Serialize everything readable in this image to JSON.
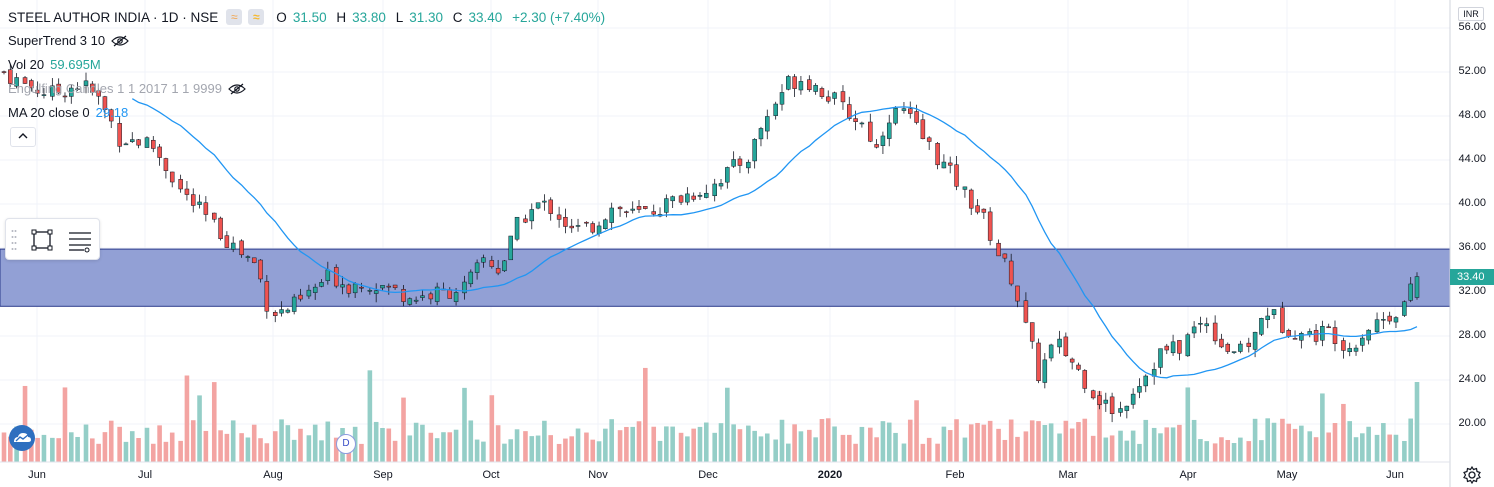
{
  "header": {
    "symbol_title": "STEEL AUTHOR INDIA · 1D · NSE",
    "chip_compare": "≈",
    "open_label": "O",
    "open": "31.50",
    "high_label": "H",
    "high": "33.80",
    "low_label": "L",
    "low": "31.30",
    "close_label": "C",
    "close": "33.40",
    "change": "+2.30 (+7.40%)"
  },
  "indicators": [
    {
      "name": "SuperTrend 3 10",
      "value": "",
      "hidden": true
    },
    {
      "name": "Vol 20",
      "value": "59.695M",
      "hidden": false
    },
    {
      "name": "Engulfing Candles 1 1 2017 1 1 9999",
      "value": "",
      "hidden": true
    },
    {
      "name": "MA 20 close 0",
      "value": "29.18",
      "hidden": false
    }
  ],
  "collapse_glyph": "^",
  "toolbar": {
    "rect_tool": "rectangle-icon",
    "lines_tool": "lines-icon"
  },
  "currency": "INR",
  "last_price": "33.40",
  "dividend_marker": "D",
  "colors": {
    "up": "#26a69a",
    "down": "#ef5350",
    "vol_up": "#94cec7",
    "vol_down": "#f3a4a2",
    "ma": "#2196f3",
    "zone": "#8c9bd3",
    "zone_border": "#2b3a8a"
  },
  "chart_data": {
    "type": "candlestick",
    "y_axis": {
      "ticks": [
        "56.00",
        "52.00",
        "48.00",
        "44.00",
        "40.00",
        "36.00",
        "32.00",
        "28.00",
        "24.00",
        "20.00"
      ],
      "ylim": [
        17.5,
        57.5
      ],
      "scale": "linear",
      "position": "right"
    },
    "x_axis": {
      "ticks": [
        "Jun",
        "Jul",
        "Aug",
        "Sep",
        "Oct",
        "Nov",
        "Dec",
        "2020",
        "Feb",
        "Mar",
        "Apr",
        "May",
        "Jun"
      ],
      "bold_ticks": [
        "2020"
      ]
    },
    "grid": true,
    "zone": {
      "from": 30.7,
      "to": 35.9
    },
    "anchors": [
      [
        0,
        52
      ],
      [
        8,
        51
      ],
      [
        15,
        50.5
      ],
      [
        22,
        50
      ],
      [
        30,
        50.5
      ],
      [
        37,
        51
      ],
      [
        45,
        49.5
      ],
      [
        55,
        46
      ],
      [
        70,
        45.5
      ],
      [
        85,
        41
      ],
      [
        100,
        38
      ],
      [
        110,
        36
      ],
      [
        120,
        34.5
      ],
      [
        125,
        31
      ],
      [
        130,
        30
      ],
      [
        140,
        31
      ],
      [
        155,
        33.5
      ],
      [
        165,
        32.5
      ],
      [
        170,
        33
      ],
      [
        180,
        32.5
      ],
      [
        195,
        31.5
      ],
      [
        210,
        32
      ],
      [
        220,
        32.5
      ],
      [
        228,
        35
      ],
      [
        236,
        34
      ],
      [
        245,
        38.5
      ],
      [
        255,
        40
      ],
      [
        262,
        39.5
      ],
      [
        270,
        37.5
      ],
      [
        280,
        38
      ],
      [
        290,
        39.8
      ],
      [
        300,
        39
      ],
      [
        310,
        39.5
      ],
      [
        320,
        40.5
      ],
      [
        335,
        41.5
      ],
      [
        345,
        43
      ],
      [
        355,
        44.5
      ],
      [
        360,
        47
      ],
      [
        365,
        48.5
      ],
      [
        372,
        51
      ],
      [
        380,
        51.5
      ],
      [
        390,
        50.2
      ],
      [
        400,
        48.5
      ],
      [
        410,
        47
      ],
      [
        415,
        45
      ],
      [
        420,
        48
      ],
      [
        428,
        48.5
      ],
      [
        435,
        46.5
      ],
      [
        445,
        44
      ],
      [
        455,
        41.5
      ],
      [
        465,
        39
      ],
      [
        473,
        35.5
      ],
      [
        480,
        33
      ],
      [
        484,
        30
      ],
      [
        488,
        27.5
      ],
      [
        492,
        24.5
      ],
      [
        500,
        27.5
      ],
      [
        506,
        26.2
      ],
      [
        514,
        24
      ],
      [
        522,
        22
      ],
      [
        530,
        21
      ],
      [
        538,
        23.5
      ],
      [
        545,
        25
      ],
      [
        550,
        26.5
      ],
      [
        560,
        27
      ],
      [
        565,
        28.5
      ],
      [
        572,
        29.5
      ],
      [
        580,
        27
      ],
      [
        588,
        26.5
      ],
      [
        595,
        28
      ],
      [
        600,
        30.5
      ],
      [
        608,
        29
      ],
      [
        620,
        28
      ],
      [
        630,
        28.5
      ],
      [
        640,
        27
      ],
      [
        650,
        29
      ],
      [
        660,
        30
      ],
      [
        667,
        31.2
      ],
      [
        672,
        33.4
      ]
    ],
    "bar_count": 673,
    "candle_count": 210,
    "ma_period": 20,
    "last": {
      "open": 31.5,
      "high": 33.8,
      "low": 31.3,
      "close": 33.4
    }
  }
}
